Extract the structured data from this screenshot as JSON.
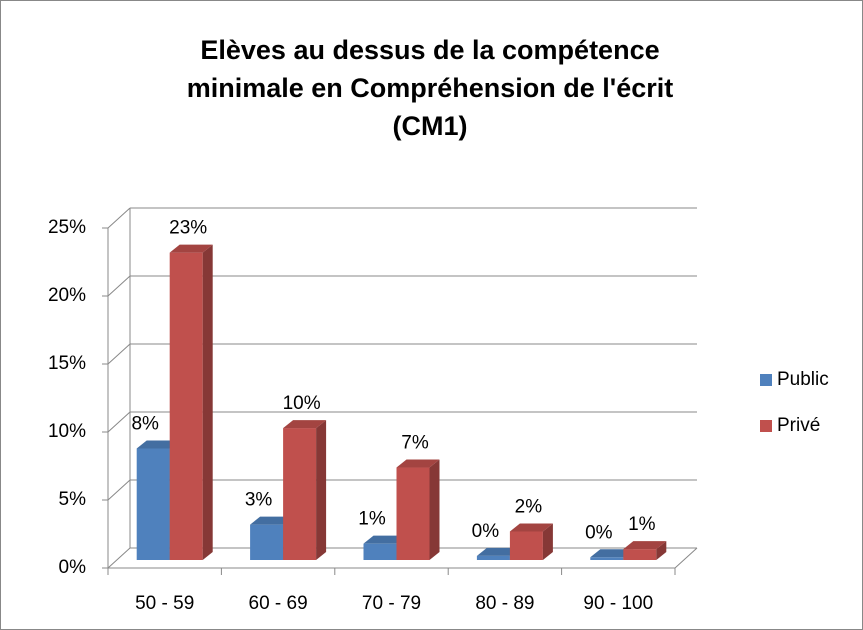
{
  "chart_data": {
    "type": "bar3d",
    "title": [
      "Elèves au dessus de la compétence",
      "minimale en Compréhension  de l'écrit",
      "(CM1)"
    ],
    "categories": [
      "50 - 59",
      "60 - 69",
      "70 - 79",
      "80 - 89",
      "90 - 100"
    ],
    "series": [
      {
        "name": "Public",
        "color": "#4f81bd",
        "values": [
          8.2,
          2.6,
          1.2,
          0.3,
          0.2
        ],
        "value_labels": [
          "8%",
          "3%",
          "1%",
          "0%",
          "0%"
        ]
      },
      {
        "name": "Privé",
        "color": "#c0504d",
        "values": [
          22.6,
          9.7,
          6.8,
          2.1,
          0.8
        ],
        "value_labels": [
          "23%",
          "10%",
          "7%",
          "2%",
          "1%"
        ]
      }
    ],
    "ylim": [
      0,
      25
    ],
    "yticks": [
      {
        "value": 0,
        "label": "0%"
      },
      {
        "value": 5,
        "label": "5%"
      },
      {
        "value": 10,
        "label": "10%"
      },
      {
        "value": 15,
        "label": "15%"
      },
      {
        "value": 20,
        "label": "20%"
      },
      {
        "value": 25,
        "label": "25%"
      }
    ],
    "grid": true,
    "legend": "right"
  }
}
